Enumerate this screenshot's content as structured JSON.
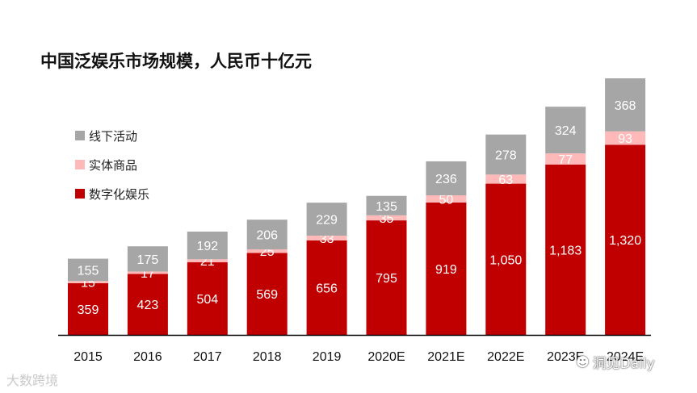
{
  "chart_data": {
    "type": "bar",
    "stacked": true,
    "title": "中国泛娱乐市场规模，人民币十亿元",
    "categories": [
      "2015",
      "2016",
      "2017",
      "2018",
      "2019",
      "2020E",
      "2021E",
      "2022E",
      "2023E",
      "2024E"
    ],
    "series": [
      {
        "name": "数字化娱乐",
        "color": "#c00000",
        "values": [
          359,
          423,
          504,
          569,
          656,
          795,
          919,
          1050,
          1183,
          1320
        ],
        "labels": [
          "359",
          "423",
          "504",
          "569",
          "656",
          "795",
          "919",
          "1,050",
          "1,183",
          "1,320"
        ]
      },
      {
        "name": "实体商品",
        "color": "#ffb9b9",
        "values": [
          15,
          17,
          21,
          25,
          33,
          35,
          50,
          63,
          77,
          93
        ],
        "labels": [
          "15",
          "17",
          "21",
          "25",
          "33",
          "35",
          "50",
          "63",
          "77",
          "93"
        ]
      },
      {
        "name": "线下活动",
        "color": "#a6a6a6",
        "values": [
          155,
          175,
          192,
          206,
          229,
          135,
          236,
          278,
          324,
          368
        ],
        "labels": [
          "155",
          "175",
          "192",
          "206",
          "229",
          "135",
          "236",
          "278",
          "324",
          "368"
        ]
      }
    ],
    "legend_order": [
      "线下活动",
      "实体商品",
      "数字化娱乐"
    ],
    "legend_position": "left",
    "xlabel": "",
    "ylabel": "",
    "grid": false
  },
  "watermarks": {
    "left": "大数跨境",
    "right": "洞见Daily"
  }
}
